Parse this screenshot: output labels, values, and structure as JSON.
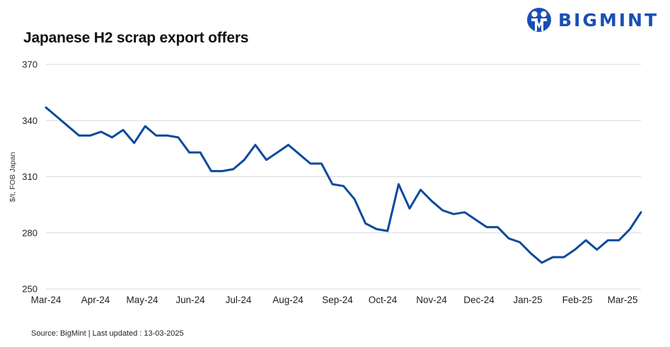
{
  "header": {
    "title": "Japanese H2 scrap export offers",
    "brand": "BIGMINT",
    "brand_color": "#1a4fb5"
  },
  "footer": {
    "source": "Source: BigMint  | Last updated : 13-03-2025"
  },
  "chart_data": {
    "type": "line",
    "title": "Japanese H2 scrap export offers",
    "xlabel": "",
    "ylabel": "$/t, FOB Japan",
    "ylim": [
      250,
      370
    ],
    "yticks": [
      370,
      340,
      310,
      280,
      250
    ],
    "grid": true,
    "legend": null,
    "line_color": "#0b4a9c",
    "x_tick_labels": [
      "Mar-24",
      "Apr-24",
      "May-24",
      "Jun-24",
      "Jul-24",
      "Aug-24",
      "Sep-24",
      "Oct-24",
      "Nov-24",
      "Dec-24",
      "Jan-25",
      "Feb-25",
      "Mar-25"
    ],
    "series": [
      {
        "name": "Japanese H2 scrap export offers",
        "values": [
          347,
          342,
          337,
          332,
          332,
          334,
          331,
          335,
          328,
          337,
          332,
          332,
          331,
          323,
          323,
          313,
          313,
          314,
          319,
          327,
          319,
          323,
          327,
          322,
          317,
          317,
          306,
          305,
          298,
          285,
          282,
          281,
          306,
          293,
          303,
          297,
          292,
          290,
          291,
          287,
          283,
          283,
          277,
          275,
          269,
          264,
          267,
          267,
          271,
          276,
          271,
          276,
          276,
          282,
          291
        ]
      }
    ]
  }
}
